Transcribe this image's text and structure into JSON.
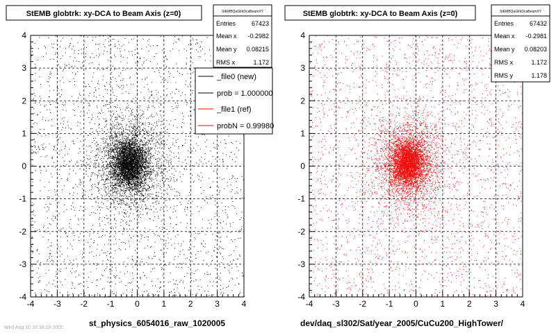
{
  "chart_data": [
    {
      "type": "scatter",
      "title": "StEMB globtrk: xy-DCA to Beam Axis (z=0)",
      "xlabel": "st_physics_6054016_raw_1020005",
      "ylabel": "",
      "xlim": [
        -4,
        4
      ],
      "ylim": [
        -4,
        4
      ],
      "xticks": [
        "-4",
        "-3",
        "-2",
        "-1",
        "0",
        "1",
        "2",
        "3",
        "4"
      ],
      "yticks": [
        "-4",
        "-3",
        "-2",
        "-1",
        "0",
        "1",
        "2",
        "3",
        "4"
      ],
      "grid": true,
      "marker_color": "#000000",
      "stats_box": {
        "name": "StEMBQaGlrkDcaBeamXY",
        "rows": [
          {
            "label": "Entries",
            "value": "67423"
          },
          {
            "label": "Mean x",
            "value": "-0.2982"
          },
          {
            "label": "Mean y",
            "value": "0.08215"
          },
          {
            "label": "RMS x",
            "value": "1.172"
          }
        ]
      },
      "legend": {
        "placement": "top-right",
        "entries": [
          {
            "label": "_file0 (new)",
            "color": "#000000"
          },
          {
            "label": "prob = 1.000000",
            "color": "#000000"
          },
          {
            "label": "_file1 (ref)",
            "color": "#ff0000"
          },
          {
            "label": "probN = 0.99980",
            "color": "#ff0000"
          }
        ]
      },
      "distribution": {
        "mean_x": -0.2982,
        "mean_y": 0.08215,
        "rms_x": 1.172,
        "entries": 67423
      }
    },
    {
      "type": "scatter",
      "title": "StEMB globtrk: xy-DCA to Beam Axis (z=0)",
      "xlabel": "dev/daq_sl302/Sat/year_2005/CuCu200_HighTower/",
      "ylabel": "",
      "xlim": [
        -4,
        4
      ],
      "ylim": [
        -4,
        4
      ],
      "xticks": [
        "-4",
        "-3",
        "-2",
        "-1",
        "0",
        "1",
        "2",
        "3",
        "4"
      ],
      "yticks": [
        "-4",
        "-3",
        "-2",
        "-1",
        "0",
        "1",
        "2",
        "3",
        "4"
      ],
      "grid": true,
      "marker_color": "#ff0000",
      "stats_box": {
        "name": "StEMBQaGlrkDcaBeamXY",
        "rows": [
          {
            "label": "Entries",
            "value": "67432"
          },
          {
            "label": "Mean x",
            "value": "-0.2981"
          },
          {
            "label": "Mean y",
            "value": "0.08203"
          },
          {
            "label": "RMS x",
            "value": "1.172"
          },
          {
            "label": "RMS y",
            "value": "1.178"
          }
        ]
      },
      "distribution": {
        "mean_x": -0.2981,
        "mean_y": 0.08203,
        "rms_x": 1.172,
        "rms_y": 1.178,
        "entries": 67432
      }
    }
  ],
  "footer_note": "Wed Aug 10 10:36:18 2005"
}
